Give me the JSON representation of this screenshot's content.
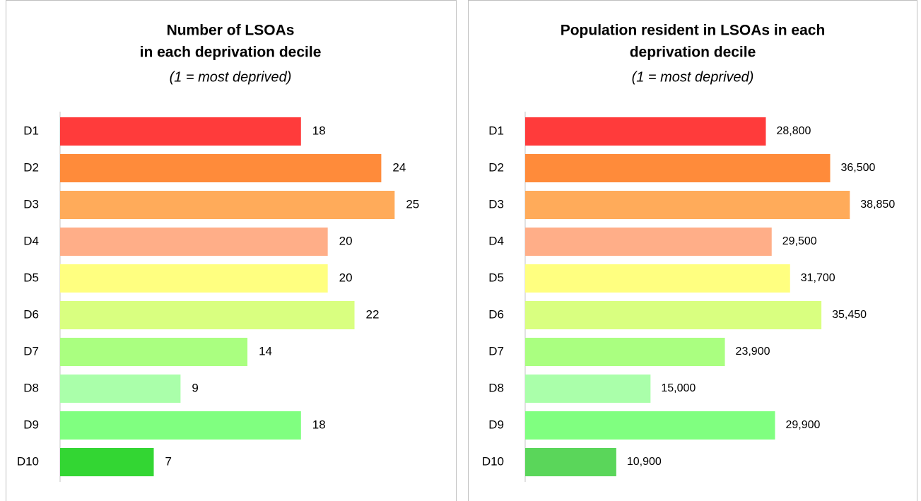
{
  "chart_data": [
    {
      "type": "barh",
      "title": [
        "Number of LSOAs",
        "in each deprivation decile"
      ],
      "subtitle": "(1 = most deprived)",
      "categories": [
        "D1",
        "D2",
        "D3",
        "D4",
        "D5",
        "D6",
        "D7",
        "D8",
        "D9",
        "D10"
      ],
      "values": [
        18,
        24,
        25,
        20,
        20,
        22,
        14,
        9,
        18,
        7
      ],
      "colors": [
        "#ff3b3b",
        "#ff8b3a",
        "#ffab5a",
        "#ffae88",
        "#ffff80",
        "#d9ff80",
        "#aaff80",
        "#aaffaa",
        "#80ff80",
        "#33d633"
      ],
      "xlim": [
        0,
        30
      ]
    },
    {
      "type": "barh",
      "title": [
        "Population resident in LSOAs in each",
        "deprivation decile"
      ],
      "subtitle": "(1 = most deprived)",
      "categories": [
        "D1",
        "D2",
        "D3",
        "D4",
        "D5",
        "D6",
        "D7",
        "D8",
        "D9",
        "D10"
      ],
      "values": [
        28800,
        36500,
        38850,
        29500,
        31700,
        35450,
        23900,
        15000,
        29900,
        10900
      ],
      "value_labels": [
        "28,800",
        "36,500",
        "38,850",
        "29,500",
        "31,700",
        "35,450",
        "23,900",
        "15,000",
        "29,900",
        "10,900"
      ],
      "colors": [
        "#ff3b3b",
        "#ff8b3a",
        "#ffab5a",
        "#ffae88",
        "#ffff80",
        "#d9ff80",
        "#aaff80",
        "#aaffaa",
        "#80ff80",
        "#5ad65a"
      ],
      "xlim": [
        0,
        45000
      ]
    }
  ]
}
